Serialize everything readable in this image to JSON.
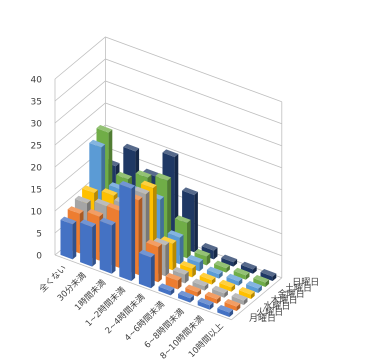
{
  "chart_data": {
    "type": "bar",
    "title": "",
    "xlabel": "",
    "ylabel": "",
    "ylim": [
      0,
      40
    ],
    "ticks": [
      "0",
      "5",
      "10",
      "15",
      "20",
      "25",
      "30",
      "35",
      "40"
    ],
    "categories": [
      "全くない",
      "30分未満",
      "1時間未満",
      "1~2時間未満",
      "2~4時間未満",
      "4~6時間未満",
      "6~8時間未満",
      "8~10時間未満",
      "10時間以上"
    ],
    "series": [
      {
        "name": "月曜日",
        "color": "#4472C4",
        "values": [
          8,
          9,
          11,
          21,
          7,
          1,
          1,
          1,
          1
        ]
      },
      {
        "name": "火曜日",
        "color": "#ED7D31",
        "values": [
          9,
          10,
          13,
          17,
          8,
          2,
          1,
          1,
          1
        ]
      },
      {
        "name": "水曜日",
        "color": "#A5A5A5",
        "values": [
          10,
          11,
          13,
          17,
          7,
          2,
          1,
          1,
          1
        ]
      },
      {
        "name": "木曜日",
        "color": "#FFC000",
        "values": [
          11,
          12,
          14,
          17,
          6,
          2,
          1,
          1,
          1
        ]
      },
      {
        "name": "金曜日",
        "color": "#5B9BD5",
        "values": [
          20,
          12,
          13,
          13,
          6,
          2,
          1,
          1,
          1
        ]
      },
      {
        "name": "土曜日",
        "color": "#70AD47",
        "values": [
          22,
          13,
          15,
          16,
          8,
          2,
          1,
          1,
          1
        ]
      },
      {
        "name": "日曜日",
        "color": "#1F3864",
        "values": [
          13,
          18,
          14,
          20,
          13,
          2,
          1,
          1,
          1
        ]
      }
    ],
    "grid": true,
    "legend": "right"
  }
}
